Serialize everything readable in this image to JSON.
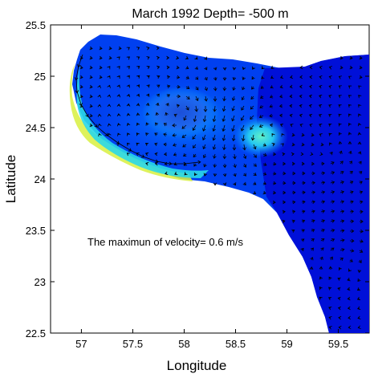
{
  "chart_data": {
    "type": "heatmap",
    "title": "March 1992  Depth=  -500 m",
    "xlabel": "Longitude",
    "ylabel": "Latitude",
    "xlim": [
      56.7,
      59.8
    ],
    "ylim": [
      22.5,
      25.5
    ],
    "x_ticks": [
      57,
      57.5,
      58,
      58.5,
      59,
      59.5
    ],
    "x_tick_labels": [
      "57",
      "57.5",
      "58",
      "58.5",
      "59",
      "59.5"
    ],
    "y_ticks": [
      22.5,
      23,
      23.5,
      24,
      24.5,
      25,
      25.5
    ],
    "y_tick_labels": [
      "22.5",
      "23",
      "23.5",
      "24",
      "24.5",
      "25",
      "25.5"
    ],
    "annotation": "The maximun of velocity= 0.6 m/s",
    "grid": false,
    "colors": {
      "ocean_deep": "#0010d8",
      "ocean_mid": "#0040f0",
      "ocean_light": "#0a8cff",
      "coastal_cyan": "#2ad8e8",
      "coastal_yellow": "#d8f040",
      "arrow": "#000000"
    }
  }
}
